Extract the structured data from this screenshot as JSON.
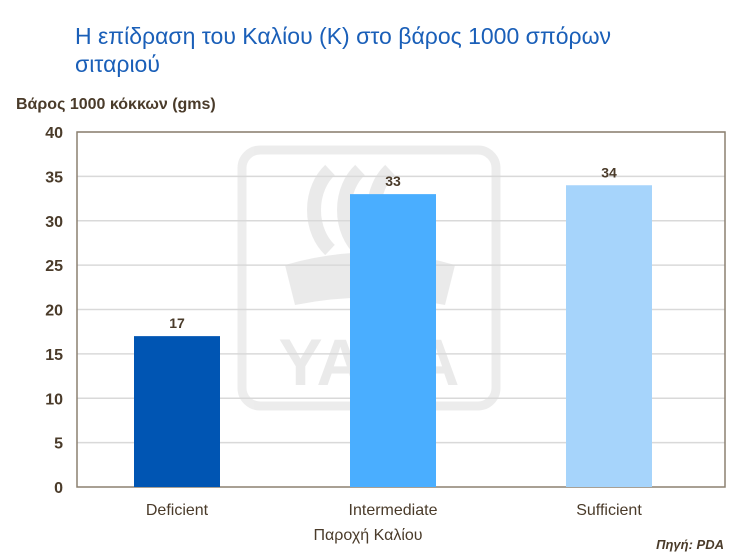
{
  "chart_data": {
    "type": "bar",
    "title": "Η επίδραση του Καλίου (Κ) στο βάρος 1000 σπόρων σιταριού",
    "ylabel": "Βάρος 1000 κόκκων (gms)",
    "xlabel": "Παροχή Καλίου",
    "categories": [
      "Deficient",
      "Intermediate",
      "Sufficient"
    ],
    "values": [
      17,
      33,
      34
    ],
    "data_labels": [
      "17",
      "33",
      "34"
    ],
    "ylim": [
      0,
      40
    ],
    "yticks": [
      0,
      5,
      10,
      15,
      20,
      25,
      30,
      35,
      40
    ],
    "grid": true,
    "colors": [
      "#0055b3",
      "#4aaeff",
      "#a6d4fb"
    ],
    "source": "Πηγή: PDA"
  },
  "watermark": {
    "text": "YARA"
  }
}
